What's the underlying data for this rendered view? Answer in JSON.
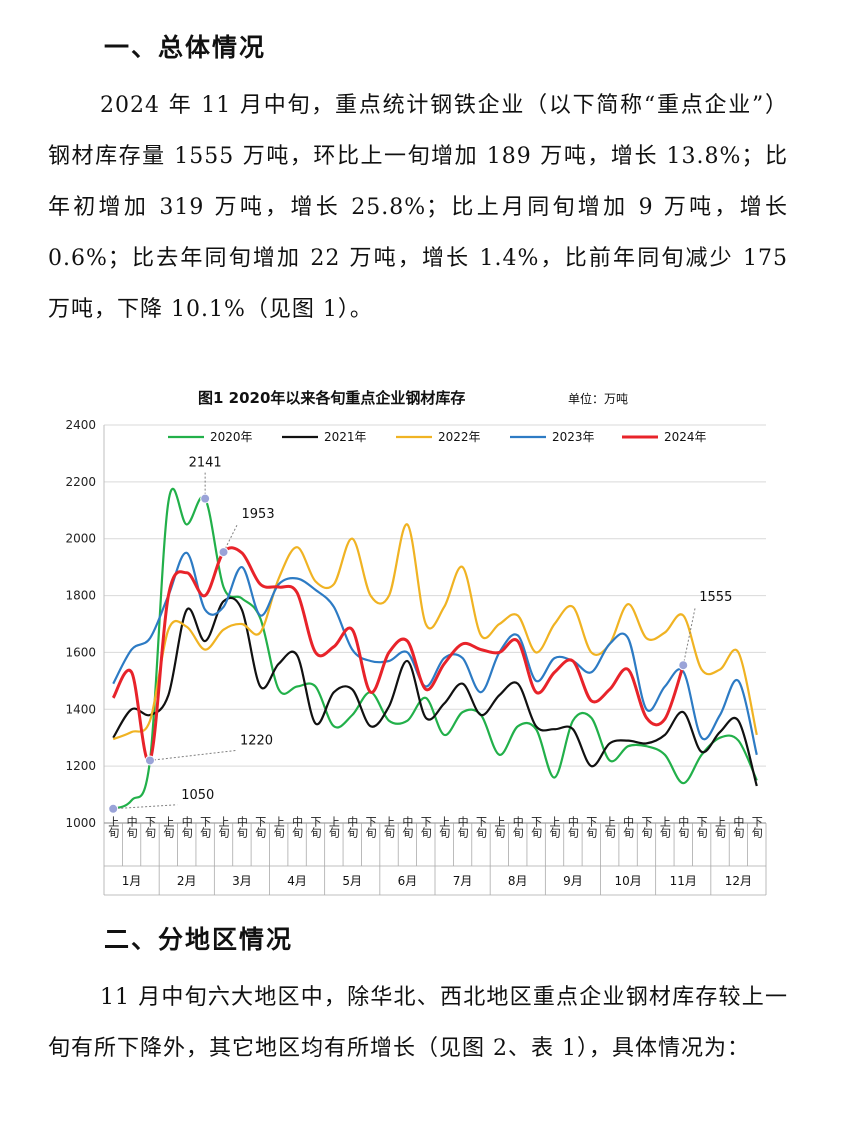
{
  "section1": {
    "heading": "一、总体情况",
    "paragraph": "2024 年 11 月中旬，重点统计钢铁企业（以下简称“重点企业”）钢材库存量 1555 万吨，环比上一旬增加 189 万吨，增长 13.8%；比年初增加 319 万吨，增长 25.8%；比上月同旬增加 9 万吨，增长 0.6%；比去年同旬增加 22 万吨，增长 1.4%，比前年同旬减少 175 万吨，下降 10.1%（见图 1）。"
  },
  "section2": {
    "heading": "二、分地区情况",
    "paragraph": "11 月中旬六大地区中，除华北、西北地区重点企业钢材库存较上一旬有所下降外，其它地区均有所增长（见图 2、表 1），具体情况为："
  },
  "chart_data": {
    "type": "line",
    "title": "图1  2020年以来各旬重点企业钢材库存",
    "unit": "单位：万吨",
    "ylim": [
      1000,
      2400
    ],
    "yticks": [
      1000,
      1200,
      1400,
      1600,
      1800,
      2000,
      2200,
      2400
    ],
    "grid": true,
    "legend_position": "top",
    "periods": [
      "上旬",
      "中旬",
      "下旬"
    ],
    "months": [
      "1月",
      "2月",
      "3月",
      "4月",
      "5月",
      "6月",
      "7月",
      "8月",
      "9月",
      "10月",
      "11月",
      "12月"
    ],
    "series": [
      {
        "name": "2020年",
        "color": "#22b04a",
        "values": [
          1050,
          1080,
          1220,
          2130,
          2050,
          2141,
          1830,
          1790,
          1720,
          1470,
          1480,
          1480,
          1340,
          1380,
          1460,
          1360,
          1360,
          1440,
          1310,
          1390,
          1380,
          1240,
          1340,
          1330,
          1160,
          1360,
          1370,
          1220,
          1270,
          1270,
          1240,
          1140,
          1240,
          1300,
          1290,
          1150
        ]
      },
      {
        "name": "2021年",
        "color": "#111111",
        "values": [
          1300,
          1400,
          1380,
          1450,
          1750,
          1640,
          1780,
          1750,
          1480,
          1560,
          1590,
          1350,
          1460,
          1470,
          1340,
          1410,
          1570,
          1370,
          1420,
          1490,
          1380,
          1450,
          1490,
          1340,
          1330,
          1330,
          1200,
          1280,
          1290,
          1280,
          1310,
          1390,
          1250,
          1320,
          1360,
          1130
        ]
      },
      {
        "name": "2022年",
        "color": "#f0b323",
        "values": [
          1295,
          1320,
          1360,
          1680,
          1690,
          1610,
          1680,
          1700,
          1670,
          1860,
          1970,
          1850,
          1840,
          2000,
          1800,
          1800,
          2050,
          1700,
          1760,
          1900,
          1660,
          1700,
          1730,
          1600,
          1700,
          1760,
          1600,
          1630,
          1770,
          1650,
          1670,
          1730,
          1540,
          1540,
          1600,
          1310
        ]
      },
      {
        "name": "2023年",
        "color": "#2d7bc4",
        "values": [
          1490,
          1610,
          1650,
          1800,
          1950,
          1750,
          1760,
          1900,
          1730,
          1840,
          1860,
          1820,
          1760,
          1610,
          1570,
          1570,
          1600,
          1480,
          1580,
          1580,
          1460,
          1600,
          1660,
          1500,
          1580,
          1570,
          1530,
          1630,
          1650,
          1400,
          1480,
          1533,
          1300,
          1380,
          1500,
          1240
        ]
      },
      {
        "name": "2024年",
        "color": "#e8232a",
        "values": [
          1440,
          1530,
          1220,
          1800,
          1880,
          1800,
          1953,
          1950,
          1840,
          1830,
          1810,
          1600,
          1620,
          1680,
          1460,
          1600,
          1640,
          1470,
          1560,
          1630,
          1610,
          1600,
          1640,
          1460,
          1530,
          1570,
          1430,
          1470,
          1540,
          1370,
          1366,
          1555
        ]
      }
    ],
    "annotations": [
      {
        "label": "2141",
        "series": "2020年",
        "index": 5
      },
      {
        "label": "1953",
        "series": "2024年",
        "index": 6
      },
      {
        "label": "1220",
        "series": "2024年",
        "index": 2
      },
      {
        "label": "1050",
        "series": "2020年",
        "index": 0
      },
      {
        "label": "1555",
        "series": "2024年",
        "index": 31
      }
    ]
  }
}
